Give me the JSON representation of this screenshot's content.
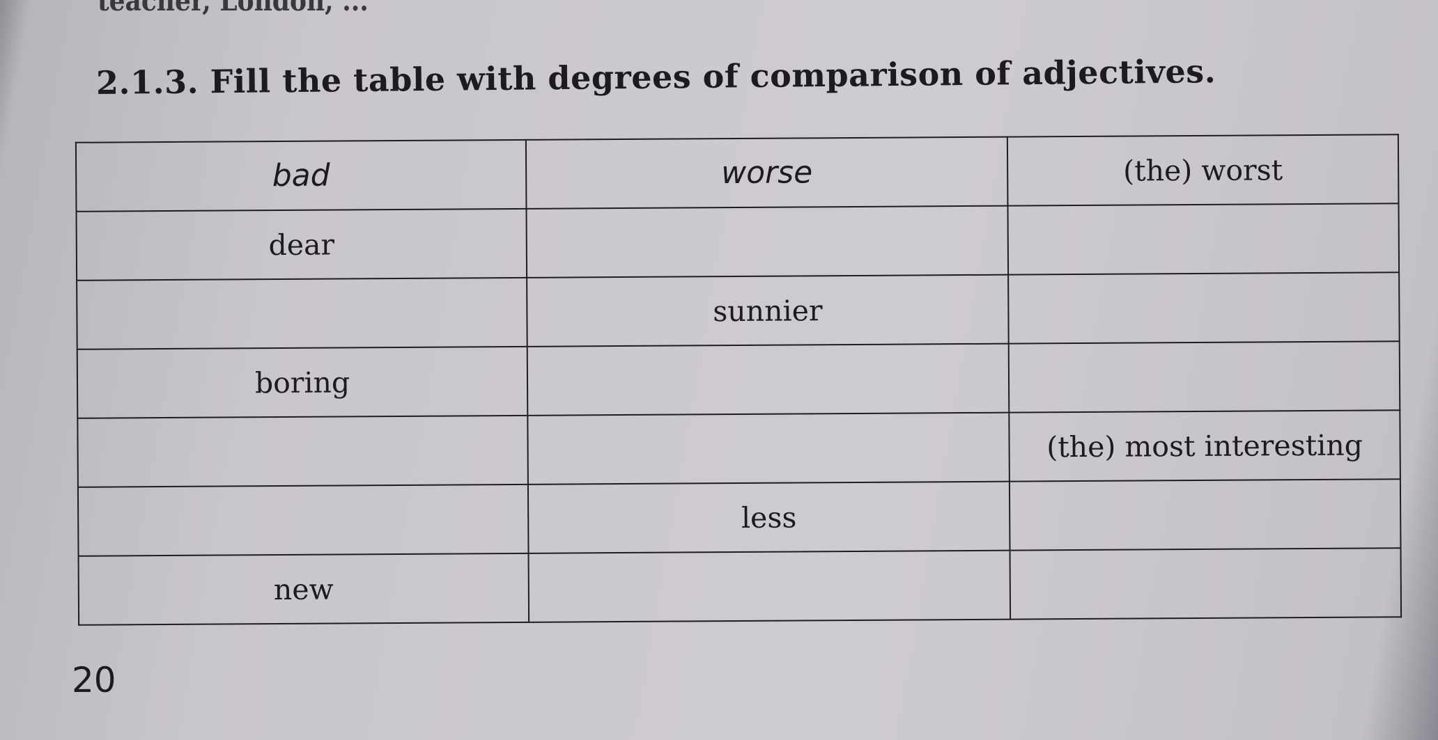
{
  "top_partial_text": "teacher, London, ...",
  "exercise_title": "2.1.3. Fill the table with degrees of comparison of adjectives.",
  "table": {
    "rows": [
      [
        "bad",
        "worse",
        "(the) worst"
      ],
      [
        "dear",
        "",
        ""
      ],
      [
        "",
        "sunnier",
        ""
      ],
      [
        "boring",
        "",
        ""
      ],
      [
        "",
        "",
        "(the) most interesting"
      ],
      [
        "",
        "less",
        ""
      ],
      [
        "new",
        "",
        ""
      ]
    ]
  },
  "page_number": "20"
}
